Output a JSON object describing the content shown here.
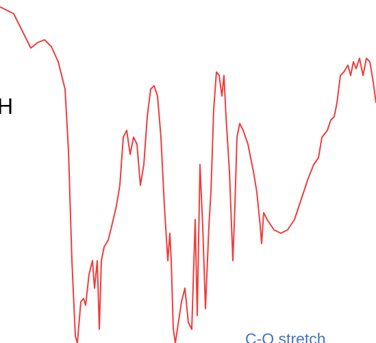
{
  "labels": {
    "left": "H",
    "annotation": "C-O stretch"
  }
}
